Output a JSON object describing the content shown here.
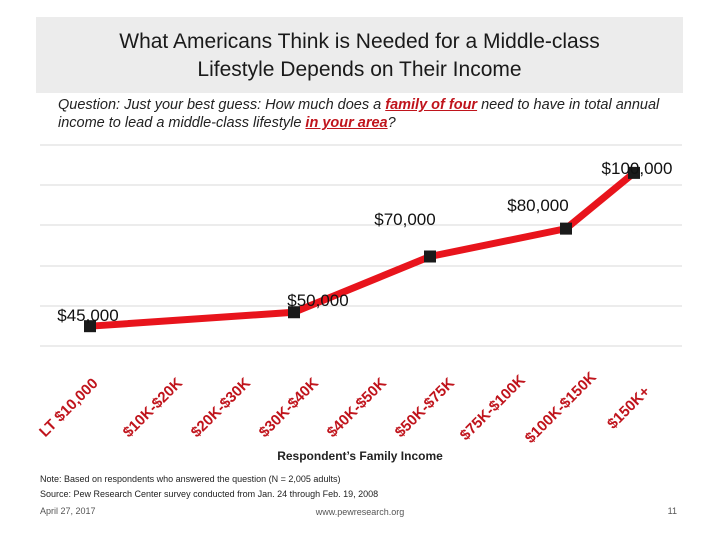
{
  "slide": {
    "title_line1": "What Americans Think is Needed for a Middle-class",
    "title_line2": "Lifestyle Depends on Their Income",
    "question_part1": "Question: Just your best guess: How much does a ",
    "question_hl1": "family of four",
    "question_part2": " need to have in total annual income to lead a middle-class lifestyle ",
    "question_hl2": "in your area",
    "question_part3": "?",
    "note": "Note: Based on respondents who answered the question (N = 2,005 adults)",
    "source": "Source: Pew Research Center survey conducted from Jan. 24 through Feb. 19, 2008",
    "date": "April 27, 2017",
    "website": "www.pewresearch.org",
    "page_number": "11"
  },
  "chart_data": {
    "type": "line",
    "title": "",
    "xlabel": "Respondent’s Family Income",
    "ylabel": "",
    "categories": [
      "LT $10,000",
      "$10K-$20K",
      "$20K-$30K",
      "$30K-$40K",
      "$40K-$50K",
      "$50K-$75K",
      "$75K-$100K",
      "$100K-$150K",
      "$150K+"
    ],
    "series": [
      {
        "values": [
          45000,
          null,
          null,
          50000,
          null,
          70000,
          null,
          80000,
          100000
        ],
        "data_labels": [
          "$45,000",
          "",
          "",
          "$50,000",
          "",
          "$70,000",
          "",
          "$80,000",
          "$100,000"
        ]
      }
    ],
    "ylim": [
      30000,
      110000
    ],
    "grid": true,
    "line_color": "#e8141c",
    "marker_color": "#1a1a1a",
    "gridline_color": "#d9d9d9"
  }
}
